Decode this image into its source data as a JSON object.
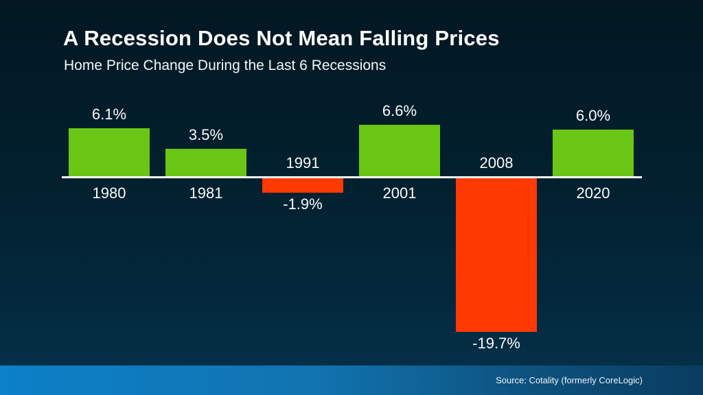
{
  "header": {
    "title": "A Recession Does Not Mean Falling Prices",
    "subtitle": "Home Price Change During the Last 6 Recessions"
  },
  "footer": {
    "source": "Source: Cotality (formerly CoreLogic)"
  },
  "chart_data": {
    "type": "bar",
    "title": "A Recession Does Not Mean Falling Prices",
    "subtitle": "Home Price Change During the Last 6 Recessions",
    "categories": [
      "1980",
      "1981",
      "1991",
      "2001",
      "2008",
      "2020"
    ],
    "values": [
      6.1,
      3.5,
      -1.9,
      6.6,
      -19.7,
      6.0
    ],
    "value_labels": [
      "6.1%",
      "3.5%",
      "-1.9%",
      "6.6%",
      "-19.7%",
      "6.0%"
    ],
    "xlabel": "",
    "ylabel": "",
    "ylim": [
      -22,
      8
    ],
    "grid": false,
    "legend": false,
    "baseline": 0,
    "colors": {
      "positive_bar": "#6ac615",
      "negative_bar": "#fe3902",
      "axis": "#ffffff",
      "label_text": "#fafcfd"
    },
    "label_convention": "positive bars: value above bar, year below axis; negative bars: year above axis, value below bar"
  }
}
